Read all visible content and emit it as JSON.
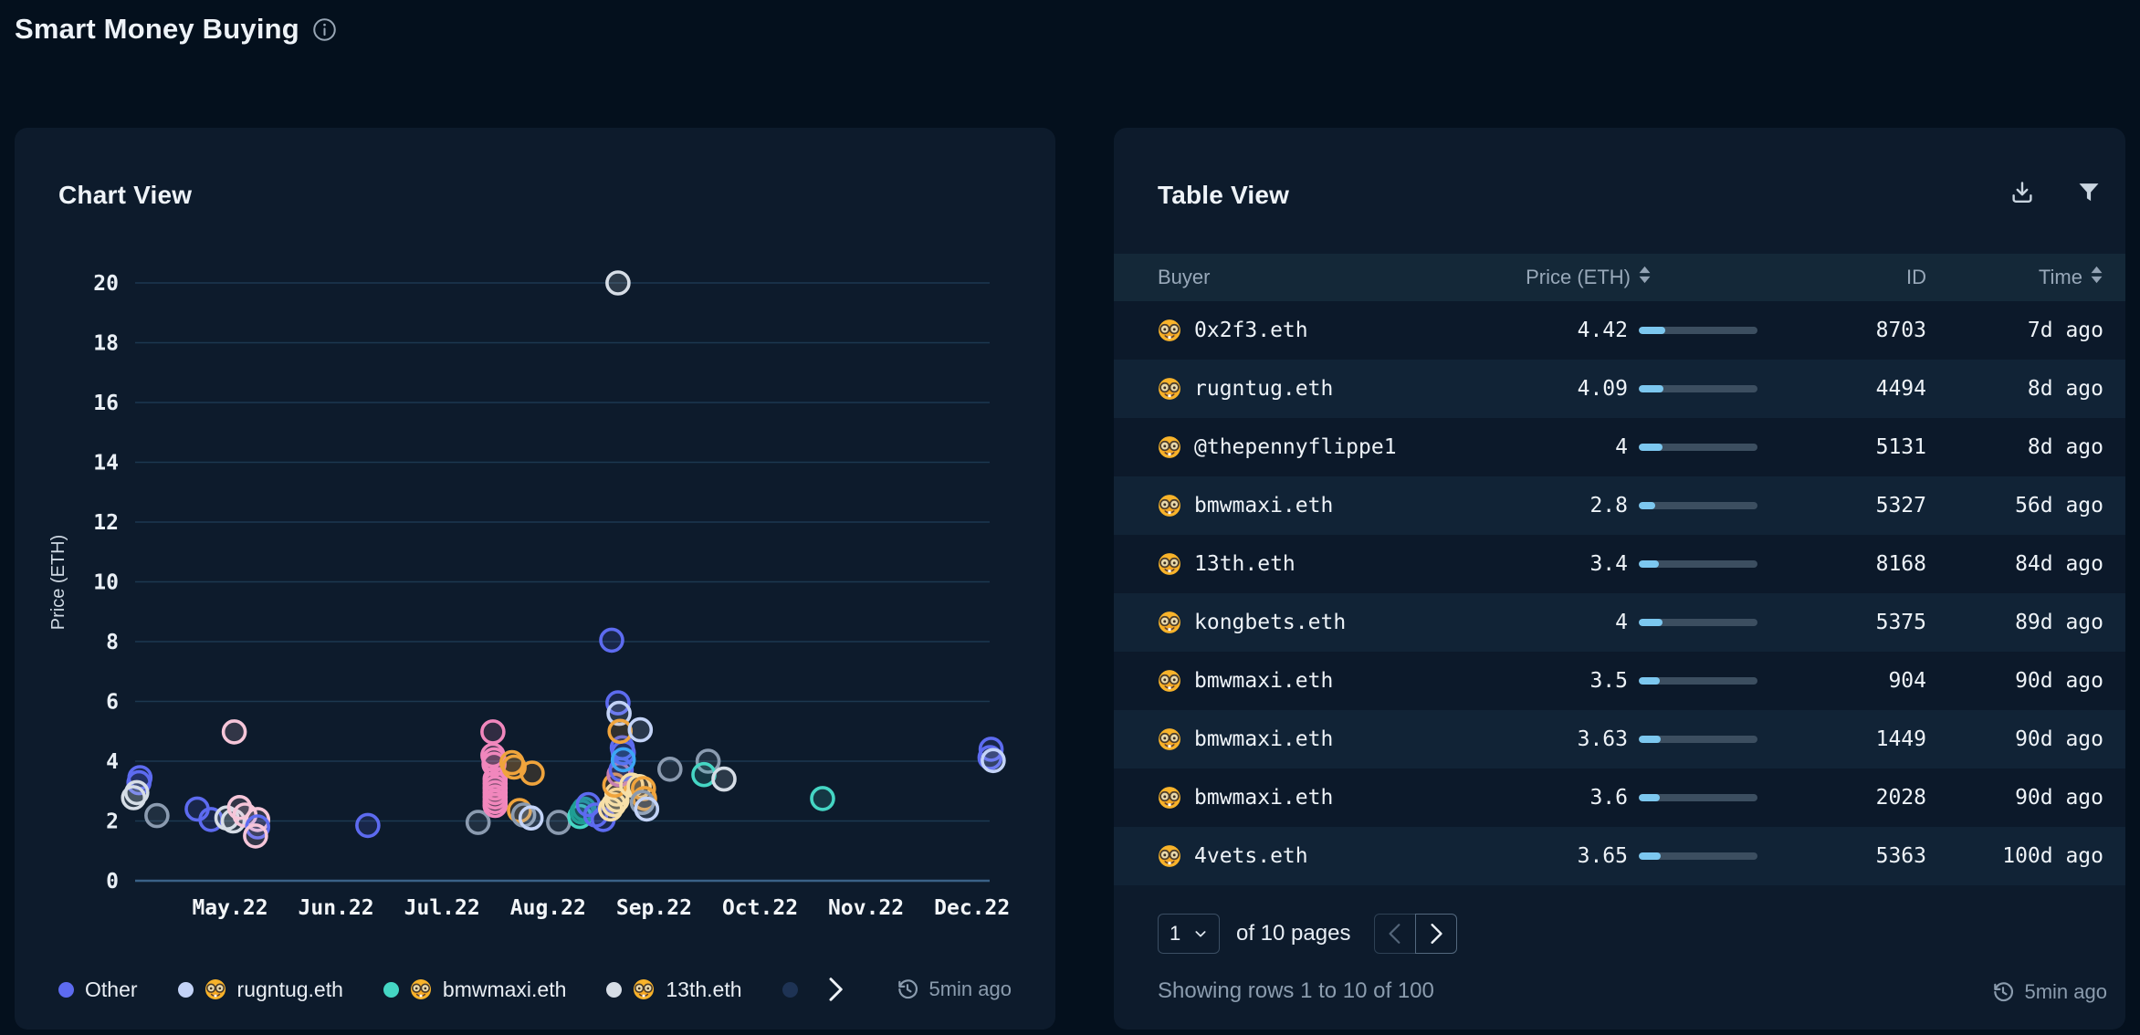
{
  "page": {
    "title": "Smart Money Buying"
  },
  "chart_panel": {
    "title": "Chart View",
    "updated": "5min ago",
    "legend": {
      "items": [
        {
          "label": "Other",
          "color": "#5d6bf0",
          "emoji": false
        },
        {
          "label": "rugntug.eth",
          "color": "#c3d3f7",
          "emoji": true
        },
        {
          "label": "bmwmaxi.eth",
          "color": "#45d6c4",
          "emoji": true
        },
        {
          "label": "13th.eth",
          "color": "#d6dde6",
          "emoji": true
        },
        {
          "label": "",
          "color": "#1e3354",
          "emoji": false
        }
      ]
    }
  },
  "chart_data": {
    "type": "scatter",
    "title": "Chart View",
    "ylabel": "Price (ETH)",
    "ylim": [
      0,
      20
    ],
    "ytick_step": 2,
    "grid": true,
    "x_tick_labels": [
      "May.22",
      "Jun.22",
      "Jul.22",
      "Aug.22",
      "Sep.22",
      "Oct.22",
      "Nov.22",
      "Dec.22"
    ],
    "x_note": "points use months offset from May.22 tick (0=May.22, 7=Dec.22)",
    "colors": {
      "other": "#5d6bf0",
      "rugntug": "#c3d3f7",
      "bmwmaxi": "#45d6c4",
      "thirteenth": "#d6dde6",
      "pink": "#f187bd",
      "pinklight": "#f6c6d9",
      "orange": "#f0a43c",
      "cream": "#f6dfa8",
      "blue2": "#3ba7f5",
      "mauve": "#c77fb2",
      "slate": "#8b9bb0",
      "tealdark": "#1f9e94"
    },
    "points": [
      [
        -0.85,
        3.45,
        "other"
      ],
      [
        -0.86,
        3.28,
        "other"
      ],
      [
        -0.88,
        2.95,
        "thirteenth"
      ],
      [
        -0.91,
        2.78,
        "thirteenth"
      ],
      [
        -0.69,
        2.18,
        "slate"
      ],
      [
        -0.31,
        2.4,
        "other"
      ],
      [
        -0.18,
        2.05,
        "other"
      ],
      [
        -0.03,
        2.1,
        "thirteenth"
      ],
      [
        0.03,
        2.0,
        "thirteenth"
      ],
      [
        0.09,
        2.45,
        "pinklight"
      ],
      [
        0.14,
        2.2,
        "pinklight"
      ],
      [
        0.04,
        4.98,
        "pinklight"
      ],
      [
        0.26,
        2.05,
        "pinklight"
      ],
      [
        0.26,
        1.8,
        "other"
      ],
      [
        0.24,
        1.5,
        "pinklight"
      ],
      [
        1.3,
        1.85,
        "other"
      ],
      [
        2.34,
        1.95,
        "slate"
      ],
      [
        2.48,
        4.98,
        "pink"
      ],
      [
        2.48,
        4.2,
        "pink"
      ],
      [
        2.49,
        4.05,
        "pink"
      ],
      [
        2.49,
        3.9,
        "pink"
      ],
      [
        2.5,
        3.4,
        "pink"
      ],
      [
        2.5,
        3.25,
        "pink"
      ],
      [
        2.5,
        3.1,
        "pink"
      ],
      [
        2.5,
        2.95,
        "pink"
      ],
      [
        2.5,
        2.8,
        "pink"
      ],
      [
        2.5,
        2.65,
        "pink"
      ],
      [
        2.5,
        2.52,
        "pink"
      ],
      [
        2.66,
        3.95,
        "orange"
      ],
      [
        2.68,
        3.8,
        "orange"
      ],
      [
        2.85,
        3.6,
        "orange"
      ],
      [
        2.73,
        2.35,
        "orange"
      ],
      [
        2.77,
        2.2,
        "slate"
      ],
      [
        2.84,
        2.1,
        "rugntug"
      ],
      [
        3.1,
        1.95,
        "slate"
      ],
      [
        3.3,
        2.15,
        "bmwmaxi"
      ],
      [
        3.32,
        2.3,
        "tealdark"
      ],
      [
        3.34,
        2.4,
        "tealdark"
      ],
      [
        3.38,
        2.55,
        "other"
      ],
      [
        3.45,
        2.2,
        "other"
      ],
      [
        3.52,
        2.05,
        "other"
      ],
      [
        3.59,
        2.4,
        "cream"
      ],
      [
        3.62,
        2.55,
        "cream"
      ],
      [
        3.65,
        2.7,
        "cream"
      ],
      [
        3.65,
        2.9,
        "cream"
      ],
      [
        3.63,
        3.2,
        "orange"
      ],
      [
        3.67,
        3.55,
        "mauve"
      ],
      [
        3.69,
        3.72,
        "other"
      ],
      [
        3.7,
        4.45,
        "other"
      ],
      [
        3.71,
        4.28,
        "other"
      ],
      [
        3.71,
        4.05,
        "blue2"
      ],
      [
        3.66,
        5.95,
        "other"
      ],
      [
        3.67,
        5.6,
        "rugntug"
      ],
      [
        3.68,
        5.0,
        "orange"
      ],
      [
        3.87,
        5.05,
        "rugntug"
      ],
      [
        3.79,
        3.2,
        "cream"
      ],
      [
        3.86,
        3.15,
        "cream"
      ],
      [
        3.9,
        3.08,
        "orange"
      ],
      [
        3.91,
        2.75,
        "orange"
      ],
      [
        3.89,
        2.62,
        "slate"
      ],
      [
        3.93,
        2.4,
        "rugntug"
      ],
      [
        4.15,
        3.73,
        "slate"
      ],
      [
        3.6,
        8.05,
        "other"
      ],
      [
        3.66,
        20,
        "thirteenth"
      ],
      [
        4.51,
        4.0,
        "slate"
      ],
      [
        4.47,
        3.55,
        "bmwmaxi"
      ],
      [
        4.66,
        3.4,
        "thirteenth"
      ],
      [
        5.59,
        2.75,
        "bmwmaxi"
      ],
      [
        7.18,
        4.4,
        "other"
      ],
      [
        7.17,
        4.12,
        "other"
      ],
      [
        7.2,
        4.02,
        "rugntug"
      ]
    ]
  },
  "table_panel": {
    "title": "Table View",
    "updated": "5min ago",
    "columns": [
      "Buyer",
      "Price (ETH)",
      "ID",
      "Time"
    ],
    "price_bar_max": 20,
    "rows": [
      {
        "buyer": "0x2f3.eth",
        "price": "4.42",
        "id": "8703",
        "time": "7d ago"
      },
      {
        "buyer": "rugntug.eth",
        "price": "4.09",
        "id": "4494",
        "time": "8d ago"
      },
      {
        "buyer": "@thepennyflippe1",
        "price": "4",
        "id": "5131",
        "time": "8d ago"
      },
      {
        "buyer": "bmwmaxi.eth",
        "price": "2.8",
        "id": "5327",
        "time": "56d ago"
      },
      {
        "buyer": "13th.eth",
        "price": "3.4",
        "id": "8168",
        "time": "84d ago"
      },
      {
        "buyer": "kongbets.eth",
        "price": "4",
        "id": "5375",
        "time": "89d ago"
      },
      {
        "buyer": "bmwmaxi.eth",
        "price": "3.5",
        "id": "904",
        "time": "90d ago"
      },
      {
        "buyer": "bmwmaxi.eth",
        "price": "3.63",
        "id": "1449",
        "time": "90d ago"
      },
      {
        "buyer": "bmwmaxi.eth",
        "price": "3.6",
        "id": "2028",
        "time": "90d ago"
      },
      {
        "buyer": "4vets.eth",
        "price": "3.65",
        "id": "5363",
        "time": "100d ago"
      }
    ],
    "pagination": {
      "page": "1",
      "pages_label": "of 10 pages",
      "showing": "Showing rows 1 to 10 of 100"
    }
  }
}
